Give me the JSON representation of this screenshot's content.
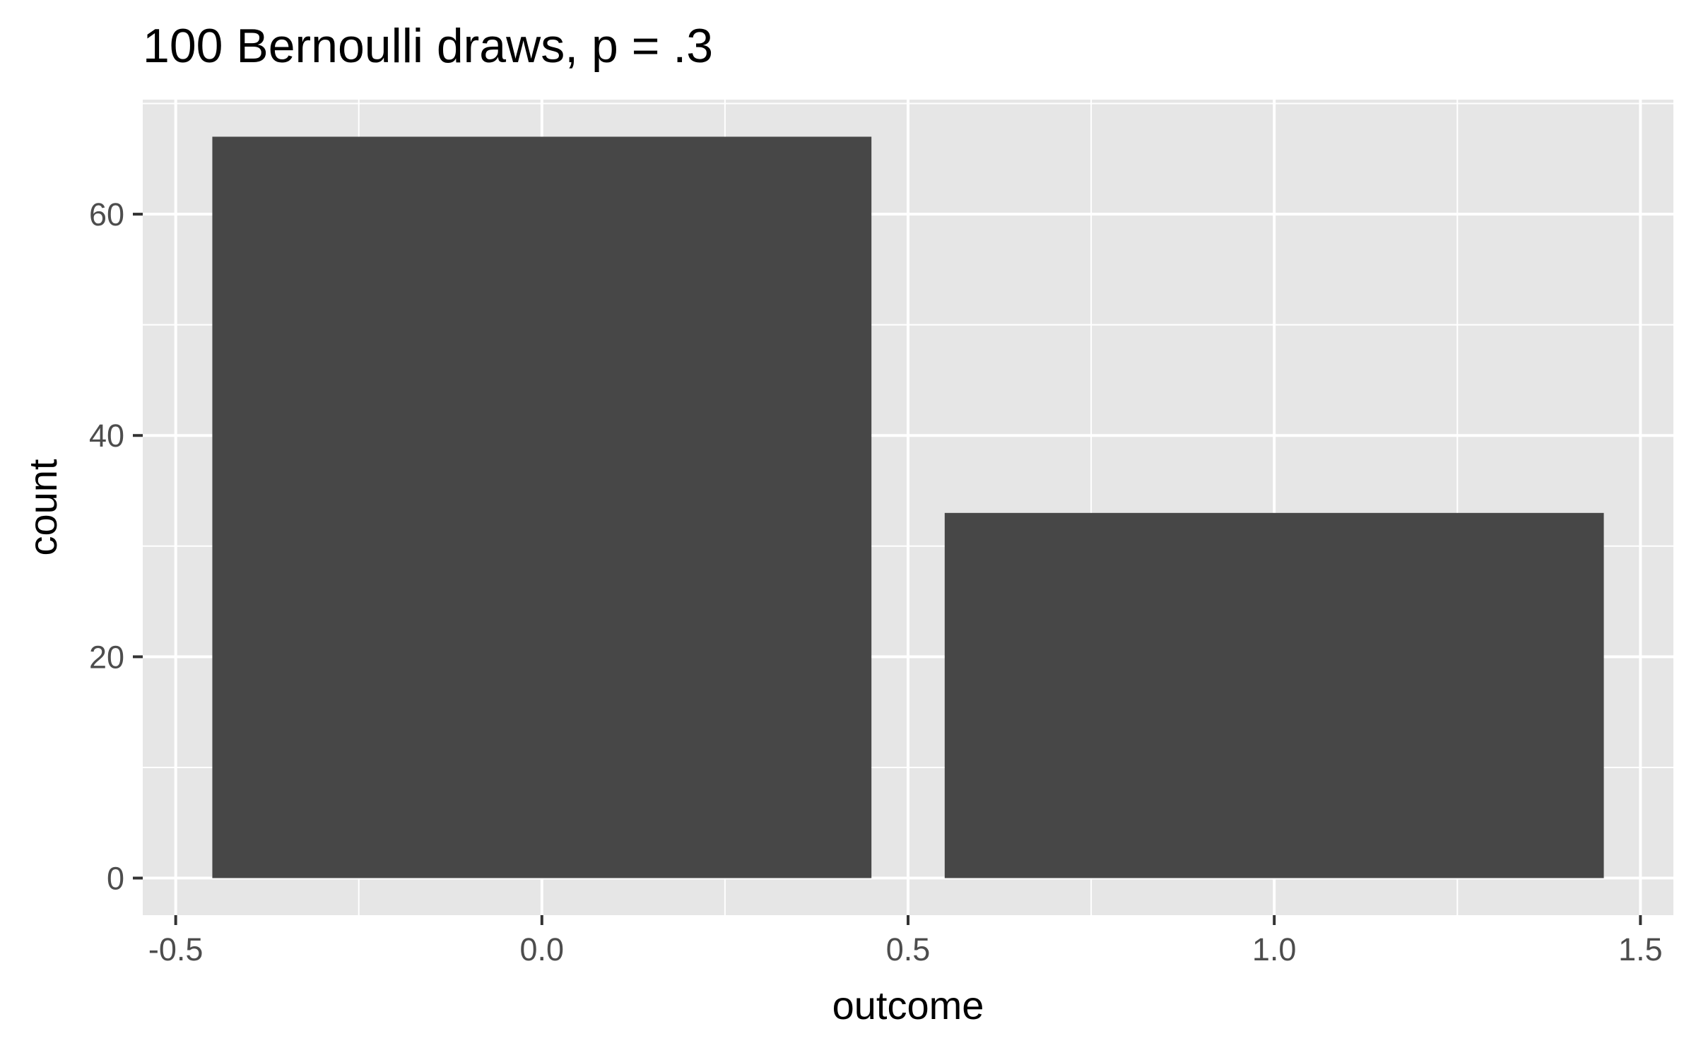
{
  "chart_data": {
    "type": "bar",
    "title": "100 Bernoulli draws, p = .3",
    "xlabel": "outcome",
    "ylabel": "count",
    "x": [
      0,
      1
    ],
    "values": [
      67,
      33
    ],
    "bar_width": 0.9,
    "xlim": [
      -0.545,
      1.545
    ],
    "ylim": [
      -3.35,
      70.35
    ],
    "x_ticks": [
      -0.5,
      0.0,
      0.5,
      1.0,
      1.5
    ],
    "x_tick_labels": [
      "-0.5",
      "0.0",
      "0.5",
      "1.0",
      "1.5"
    ],
    "x_minor_ticks": [
      -0.25,
      0.25,
      0.75,
      1.25
    ],
    "y_ticks": [
      0,
      20,
      40,
      60
    ],
    "y_tick_labels": [
      "0",
      "20",
      "40",
      "60"
    ],
    "y_minor_ticks": [
      10,
      30,
      50,
      70
    ],
    "grid": true,
    "legend": "none",
    "colors": {
      "panel_background": "#e6e6e6",
      "grid": "#ffffff",
      "bar_fill": "#474747",
      "tick_mark": "#333333",
      "tick_label": "#4d4d4d",
      "text": "#000000"
    }
  }
}
